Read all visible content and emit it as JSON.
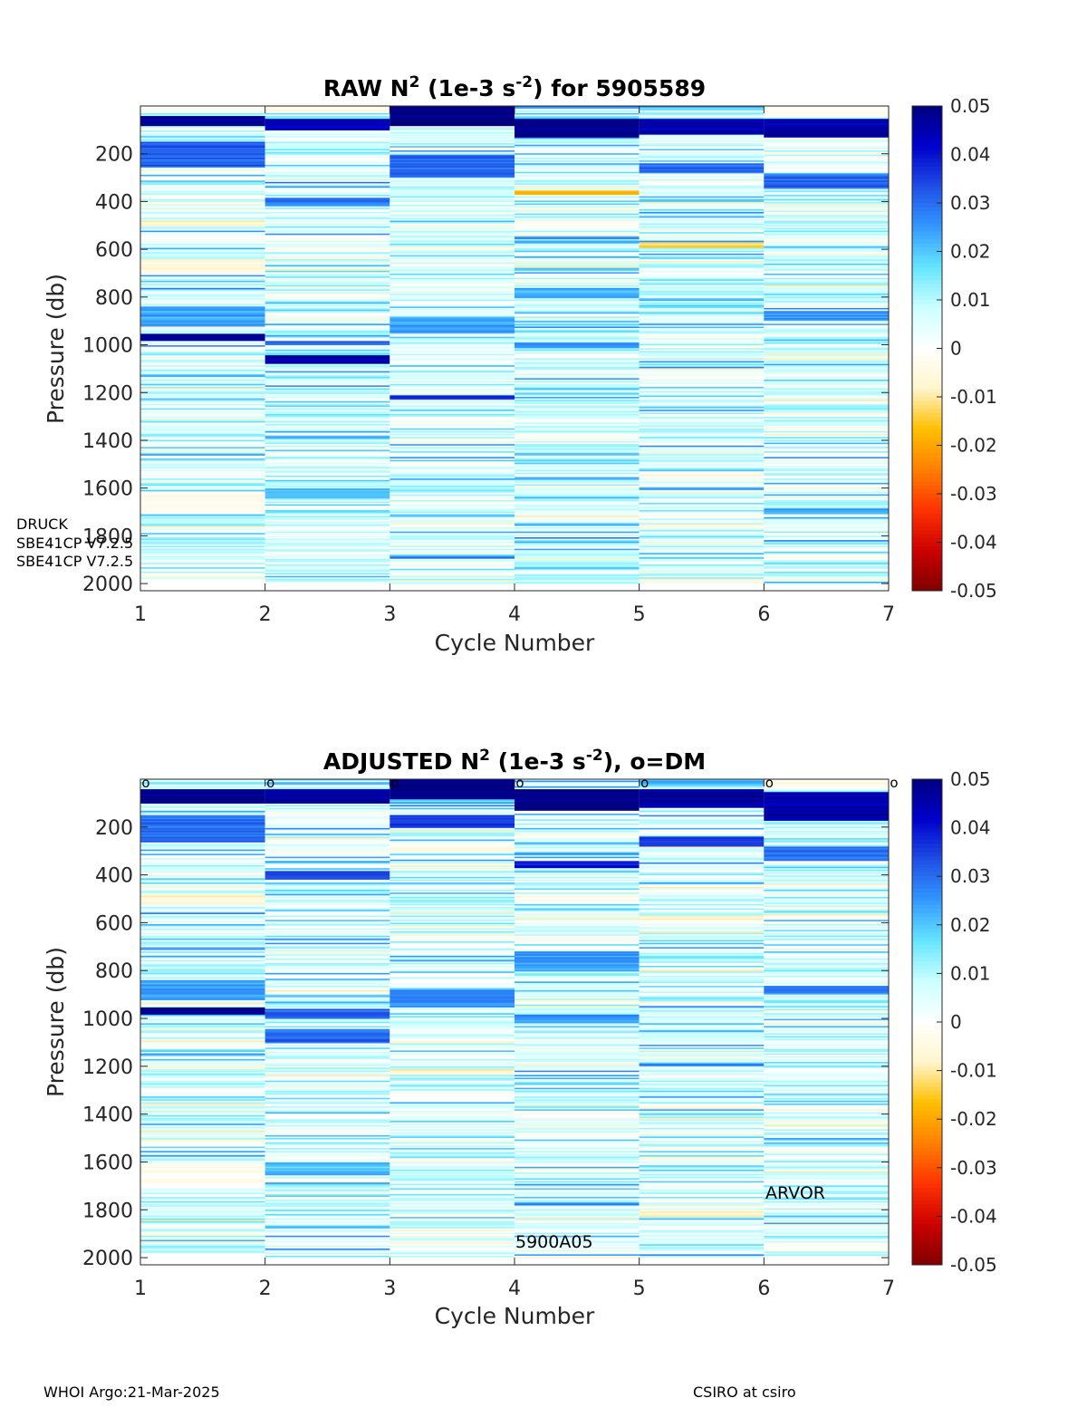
{
  "colors": {
    "colormap": [
      "#7f0000",
      "#cc0000",
      "#ff3300",
      "#ff8000",
      "#ffbf00",
      "#fff5cc",
      "#ffffff",
      "#ccffff",
      "#66e6ff",
      "#3399ff",
      "#1f4fe6",
      "#0000cc",
      "#00007f"
    ],
    "axis": "#262626",
    "text": "#262626"
  },
  "footer": {
    "left": "WHOI Argo:21-Mar-2025",
    "right": "CSIRO at csiro"
  },
  "chart_data": [
    {
      "type": "heatmap",
      "title": "RAW N² (1e-3 s⁻²) for 5905589",
      "title_parts": {
        "pre": "RAW N",
        "sup1": "2",
        "mid": " (1e-3 s",
        "sup2": "-2",
        "post": ") for 5905589"
      },
      "xlabel": "Cycle Number",
      "ylabel": "Pressure (db)",
      "x_ticks": [
        1,
        2,
        3,
        4,
        5,
        6,
        7
      ],
      "xlim": [
        1,
        7
      ],
      "y_ticks": [
        200,
        400,
        600,
        800,
        1000,
        1200,
        1400,
        1600,
        1800,
        2000
      ],
      "ylim": [
        0,
        2030
      ],
      "y_reversed": true,
      "colorbar": {
        "ticks": [
          "0.05",
          "0.04",
          "0.03",
          "0.02",
          "0.01",
          "0",
          "-0.01",
          "-0.02",
          "-0.03",
          "-0.04",
          "-0.05"
        ],
        "clim": [
          -0.05,
          0.05
        ]
      },
      "cycles": [
        {
          "cycle": 1,
          "max_pressure": 1980,
          "bands": [
            [
              0,
              30,
              0.0
            ],
            [
              40,
              80,
              0.048
            ],
            [
              150,
              250,
              0.032
            ],
            [
              480,
              500,
              -0.008
            ],
            [
              640,
              700,
              -0.005
            ],
            [
              840,
              920,
              0.024
            ],
            [
              950,
              980,
              0.048
            ],
            [
              1620,
              1700,
              -0.004
            ]
          ]
        },
        {
          "cycle": 2,
          "max_pressure": 2000,
          "bands": [
            [
              0,
              30,
              -0.002
            ],
            [
              50,
              100,
              0.045
            ],
            [
              380,
              420,
              0.028
            ],
            [
              980,
              1000,
              0.03
            ],
            [
              1040,
              1080,
              0.046
            ],
            [
              1600,
              1640,
              0.02
            ]
          ]
        },
        {
          "cycle": 3,
          "max_pressure": 2000,
          "bands": [
            [
              0,
              80,
              0.05
            ],
            [
              200,
              300,
              0.03
            ],
            [
              880,
              950,
              0.024
            ],
            [
              1210,
              1230,
              0.035
            ],
            [
              1300,
              1340,
              0.0
            ]
          ]
        },
        {
          "cycle": 4,
          "max_pressure": 2000,
          "bands": [
            [
              50,
              130,
              0.05
            ],
            [
              350,
              370,
              -0.018
            ],
            [
              480,
              520,
              -0.002
            ],
            [
              760,
              800,
              0.022
            ],
            [
              990,
              1010,
              0.026
            ]
          ]
        },
        {
          "cycle": 5,
          "max_pressure": 2000,
          "bands": [
            [
              50,
              120,
              0.045
            ],
            [
              240,
              280,
              0.03
            ],
            [
              570,
              590,
              -0.012
            ],
            [
              1110,
              1140,
              0.0
            ],
            [
              1750,
              1770,
              -0.006
            ]
          ]
        },
        {
          "cycle": 6,
          "max_pressure": 2000,
          "bands": [
            [
              0,
              40,
              -0.003
            ],
            [
              50,
              130,
              0.045
            ],
            [
              280,
              340,
              0.03
            ],
            [
              860,
              900,
              0.025
            ]
          ]
        }
      ],
      "annotations": [
        "DRUCK",
        "SBE41CP V7.2.5",
        "SBE41CP V7.2.5"
      ]
    },
    {
      "type": "heatmap",
      "title": "ADJUSTED N² (1e-3 s⁻²), o=DM",
      "title_parts": {
        "pre": "ADJUSTED N",
        "sup1": "2",
        "mid": " (1e-3 s",
        "sup2": "-2",
        "post": "), o=DM"
      },
      "xlabel": "Cycle Number",
      "ylabel": "Pressure (db)",
      "x_ticks": [
        1,
        2,
        3,
        4,
        5,
        6,
        7
      ],
      "xlim": [
        1,
        7
      ],
      "y_ticks": [
        200,
        400,
        600,
        800,
        1000,
        1200,
        1400,
        1600,
        1800,
        2000
      ],
      "ylim": [
        0,
        2030
      ],
      "y_reversed": true,
      "colorbar": {
        "ticks": [
          "0.05",
          "0.04",
          "0.03",
          "0.02",
          "0.01",
          "0",
          "-0.01",
          "-0.02",
          "-0.03",
          "-0.04",
          "-0.05"
        ],
        "clim": [
          -0.05,
          0.05
        ]
      },
      "dm_marker": "o",
      "dm_cycles": [
        1,
        2,
        3,
        4,
        5,
        6,
        7
      ],
      "cycles": [
        {
          "cycle": 1,
          "max_pressure": 1980,
          "bands": [
            [
              40,
              100,
              0.048
            ],
            [
              150,
              260,
              0.03
            ],
            [
              480,
              520,
              -0.006
            ],
            [
              840,
              920,
              0.024
            ],
            [
              950,
              980,
              0.048
            ],
            [
              1620,
              1700,
              -0.003
            ]
          ]
        },
        {
          "cycle": 2,
          "max_pressure": 2000,
          "bands": [
            [
              40,
              100,
              0.048
            ],
            [
              380,
              420,
              0.035
            ],
            [
              960,
              1000,
              0.03
            ],
            [
              1040,
              1100,
              0.03
            ],
            [
              1600,
              1640,
              0.02
            ]
          ]
        },
        {
          "cycle": 3,
          "max_pressure": 2000,
          "bands": [
            [
              0,
              80,
              0.05
            ],
            [
              150,
              200,
              0.035
            ],
            [
              280,
              300,
              -0.008
            ],
            [
              880,
              950,
              0.026
            ],
            [
              1210,
              1230,
              -0.01
            ],
            [
              1300,
              1340,
              0.0
            ]
          ]
        },
        {
          "cycle": 4,
          "max_pressure": 2000,
          "bands": [
            [
              40,
              130,
              0.05
            ],
            [
              340,
              370,
              0.04
            ],
            [
              480,
              520,
              -0.002
            ],
            [
              720,
              800,
              0.024
            ],
            [
              980,
              1020,
              0.026
            ]
          ]
        },
        {
          "cycle": 5,
          "max_pressure": 2000,
          "bands": [
            [
              40,
              120,
              0.046
            ],
            [
              240,
              280,
              0.035
            ],
            [
              570,
              590,
              -0.006
            ],
            [
              1800,
              1830,
              -0.006
            ]
          ]
        },
        {
          "cycle": 6,
          "max_pressure": 2000,
          "bands": [
            [
              0,
              40,
              -0.003
            ],
            [
              50,
              170,
              0.045
            ],
            [
              280,
              340,
              0.03
            ],
            [
              860,
              900,
              0.026
            ]
          ]
        }
      ],
      "annotations": [
        "5900A05",
        "ARVOR"
      ]
    }
  ]
}
